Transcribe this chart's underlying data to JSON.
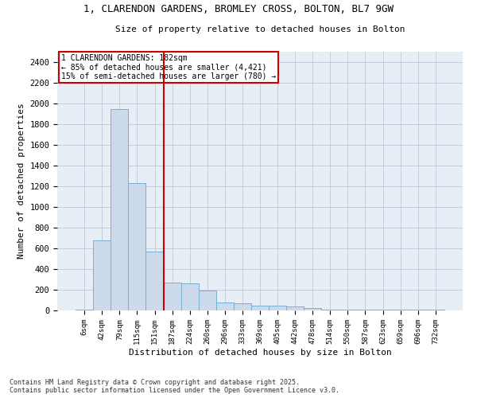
{
  "title_line1": "1, CLARENDON GARDENS, BROMLEY CROSS, BOLTON, BL7 9GW",
  "title_line2": "Size of property relative to detached houses in Bolton",
  "xlabel": "Distribution of detached houses by size in Bolton",
  "ylabel": "Number of detached properties",
  "categories": [
    "6sqm",
    "42sqm",
    "79sqm",
    "115sqm",
    "151sqm",
    "187sqm",
    "224sqm",
    "260sqm",
    "296sqm",
    "333sqm",
    "369sqm",
    "405sqm",
    "442sqm",
    "478sqm",
    "514sqm",
    "550sqm",
    "587sqm",
    "623sqm",
    "659sqm",
    "696sqm",
    "732sqm"
  ],
  "values": [
    10,
    680,
    1950,
    1230,
    570,
    270,
    265,
    190,
    80,
    70,
    45,
    45,
    40,
    25,
    10,
    5,
    5,
    5,
    5,
    5,
    5
  ],
  "bar_color": "#ccdaeb",
  "bar_edge_color": "#7aaed4",
  "vline_x": 5,
  "vline_color": "#cc0000",
  "annotation_title": "1 CLARENDON GARDENS: 182sqm",
  "annotation_line1": "← 85% of detached houses are smaller (4,421)",
  "annotation_line2": "15% of semi-detached houses are larger (780) →",
  "annotation_box_color": "#cc0000",
  "ylim": [
    0,
    2500
  ],
  "yticks": [
    0,
    200,
    400,
    600,
    800,
    1000,
    1200,
    1400,
    1600,
    1800,
    2000,
    2200,
    2400
  ],
  "grid_color": "#c0c8d8",
  "background_color": "#e8eef5",
  "footer_line1": "Contains HM Land Registry data © Crown copyright and database right 2025.",
  "footer_line2": "Contains public sector information licensed under the Open Government Licence v3.0."
}
